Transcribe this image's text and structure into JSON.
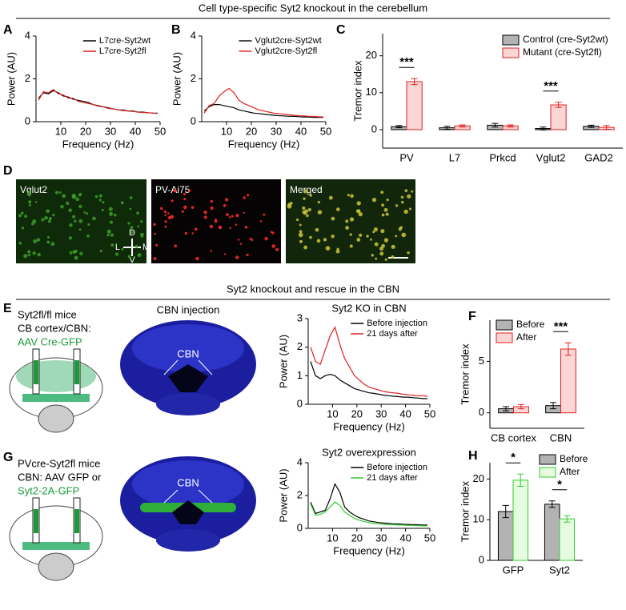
{
  "figure": {
    "section_1_title": "Cell type-specific Syt2 knockout in the cerebellum",
    "section_2_title": "Syt2 knockout and rescue in the CBN",
    "panel_letters": [
      "A",
      "B",
      "C",
      "D",
      "E",
      "F",
      "G",
      "H"
    ],
    "panel_d": {
      "labels": [
        "Vglut2",
        "PV-Ai75",
        "Merged"
      ],
      "compass": [
        "D",
        "L",
        "M",
        "V"
      ]
    },
    "panel_e": {
      "diagram_lines": [
        "Syt2fl/fl mice",
        "CB cortex/CBN:",
        "AAV Cre-GFP"
      ],
      "image_title": "CBN injection",
      "image_label": "CBN"
    },
    "panel_g": {
      "diagram_lines": [
        "PVcre-Syt2fl mice",
        "CBN: AAV GFP or",
        "Syt2-2A-GFP"
      ],
      "image_label": "CBN"
    }
  },
  "chart_data": [
    {
      "type": "line",
      "xlabel": "Frequency (Hz)",
      "ylabel": "Power (AU)",
      "x": [
        1,
        3,
        5,
        7,
        9,
        11,
        13,
        15,
        17,
        19,
        21,
        23,
        25,
        27,
        29,
        31,
        33,
        35,
        37,
        39,
        41,
        43,
        45,
        47,
        49
      ],
      "xlim": [
        0,
        50
      ],
      "xticks": [
        10,
        20,
        30,
        40,
        50
      ],
      "ylim": [
        0,
        4
      ],
      "yticks": [
        0,
        2,
        4
      ],
      "series": [
        {
          "name": "L7cre-Syt2wt",
          "color": "#000000",
          "values": [
            1.1,
            1.35,
            1.3,
            1.45,
            1.35,
            1.2,
            1.15,
            1.05,
            1.0,
            0.95,
            0.9,
            0.8,
            0.75,
            0.7,
            0.65,
            0.6,
            0.55,
            0.55,
            0.5,
            0.5,
            0.45,
            0.45,
            0.42,
            0.4,
            0.4
          ]
        },
        {
          "name": "L7cre-Syt2fl",
          "color": "#e02020",
          "values": [
            1.0,
            1.4,
            1.35,
            1.5,
            1.3,
            1.25,
            1.1,
            1.1,
            0.95,
            0.9,
            0.85,
            0.8,
            0.72,
            0.7,
            0.62,
            0.6,
            0.55,
            0.52,
            0.5,
            0.48,
            0.45,
            0.43,
            0.42,
            0.4,
            0.38
          ]
        }
      ]
    },
    {
      "type": "line",
      "xlabel": "Frequency (Hz)",
      "ylabel": "Power (AU)",
      "x": [
        1,
        3,
        5,
        7,
        9,
        11,
        13,
        15,
        17,
        19,
        21,
        23,
        25,
        27,
        29,
        31,
        33,
        35,
        37,
        39,
        41,
        43,
        45,
        47,
        49
      ],
      "xlim": [
        0,
        50
      ],
      "xticks": [
        10,
        20,
        30,
        40,
        50
      ],
      "ylim": [
        0,
        4
      ],
      "yticks": [
        0,
        2,
        4
      ],
      "series": [
        {
          "name": "Vglut2cre-Syt2wt",
          "color": "#000000",
          "values": [
            0.5,
            0.7,
            0.8,
            0.8,
            0.75,
            0.7,
            0.65,
            0.55,
            0.5,
            0.45,
            0.4,
            0.38,
            0.35,
            0.32,
            0.3,
            0.28,
            0.27,
            0.25,
            0.25,
            0.23,
            0.22,
            0.22,
            0.2,
            0.2,
            0.2
          ]
        },
        {
          "name": "Vglut2cre-Syt2fl",
          "color": "#e02020",
          "values": [
            0.4,
            0.75,
            0.85,
            1.2,
            1.4,
            1.55,
            1.35,
            1.0,
            0.85,
            0.75,
            0.65,
            0.55,
            0.5,
            0.45,
            0.4,
            0.38,
            0.35,
            0.32,
            0.3,
            0.28,
            0.27,
            0.25,
            0.25,
            0.23,
            0.22
          ]
        }
      ]
    },
    {
      "type": "bar",
      "ylabel": "Tremor index",
      "categories": [
        "PV",
        "L7",
        "Prkcd",
        "Vglut2",
        "GAD2"
      ],
      "ylim": [
        -5,
        26
      ],
      "yticks": [
        0,
        10,
        20
      ],
      "legend": "upper right",
      "series": [
        {
          "name": "Control (cre-Syt2wt)",
          "color": "#b3b3b3",
          "edgecolor": "#000000",
          "values": [
            0.8,
            0.5,
            1.2,
            0.3,
            0.9
          ],
          "errors": [
            0.3,
            0.4,
            0.5,
            0.4,
            0.3
          ]
        },
        {
          "name": "Mutant (cre-Syt2fl)",
          "color": "#fcd5d5",
          "edgecolor": "#e02020",
          "values": [
            13,
            1,
            1,
            6.7,
            0.6
          ],
          "errors": [
            0.8,
            0.3,
            0.3,
            0.7,
            0.5
          ]
        }
      ],
      "annotations": [
        {
          "text": "***",
          "category": "PV"
        },
        {
          "text": "***",
          "category": "Vglut2"
        }
      ]
    },
    {
      "type": "line",
      "title": "Syt2 KO in CBN",
      "xlabel": "Frequency (Hz)",
      "ylabel": "Power (AU)",
      "x": [
        1,
        3,
        5,
        7,
        9,
        11,
        13,
        15,
        17,
        19,
        21,
        23,
        25,
        27,
        29,
        31,
        33,
        35,
        37,
        39,
        41,
        43,
        45,
        47,
        49
      ],
      "xlim": [
        0,
        50
      ],
      "xticks": [
        10,
        20,
        30,
        40,
        50
      ],
      "ylim": [
        0,
        3
      ],
      "yticks": [
        0,
        1,
        2,
        3
      ],
      "series": [
        {
          "name": "Before injection",
          "color": "#000000",
          "values": [
            1.5,
            1.0,
            0.9,
            1.0,
            1.05,
            1.0,
            0.85,
            0.75,
            0.65,
            0.55,
            0.5,
            0.45,
            0.4,
            0.38,
            0.35,
            0.32,
            0.3,
            0.28,
            0.27,
            0.25,
            0.25,
            0.23,
            0.22,
            0.2,
            0.2
          ]
        },
        {
          "name": "21 days after",
          "color": "#e02020",
          "values": [
            2.0,
            1.5,
            1.4,
            1.9,
            2.4,
            2.7,
            2.1,
            1.6,
            1.3,
            1.0,
            0.85,
            0.7,
            0.6,
            0.55,
            0.5,
            0.45,
            0.42,
            0.4,
            0.38,
            0.35,
            0.33,
            0.32,
            0.3,
            0.3,
            0.28
          ]
        }
      ]
    },
    {
      "type": "bar",
      "ylabel": "Tremor index",
      "categories": [
        "CB cortex",
        "CBN"
      ],
      "ylim": [
        -1.5,
        9
      ],
      "yticks": [
        0,
        5
      ],
      "legend": "upper left",
      "series": [
        {
          "name": "Before",
          "color": "#b3b3b3",
          "edgecolor": "#000000",
          "values": [
            0.4,
            0.7
          ],
          "errors": [
            0.2,
            0.3
          ]
        },
        {
          "name": "After",
          "color": "#fcd5d5",
          "edgecolor": "#e02020",
          "values": [
            0.6,
            6.2
          ],
          "errors": [
            0.2,
            0.6
          ]
        }
      ],
      "annotations": [
        {
          "text": "***",
          "category": "CBN"
        }
      ]
    },
    {
      "type": "line",
      "title": "Syt2 overexpression",
      "xlabel": "Frequency (Hz)",
      "ylabel": "Power (AU)",
      "x": [
        1,
        3,
        5,
        7,
        9,
        11,
        13,
        15,
        17,
        19,
        21,
        23,
        25,
        27,
        29,
        31,
        33,
        35,
        37,
        39,
        41,
        43,
        45,
        47,
        49
      ],
      "xlim": [
        0,
        50
      ],
      "xticks": [
        10,
        20,
        30,
        40,
        50
      ],
      "ylim": [
        0,
        4
      ],
      "yticks": [
        0,
        2,
        4
      ],
      "series": [
        {
          "name": "Before injection",
          "color": "#000000",
          "values": [
            1.6,
            0.9,
            1.0,
            1.1,
            1.8,
            2.7,
            2.2,
            1.3,
            1.0,
            0.8,
            0.65,
            0.55,
            0.45,
            0.4,
            0.35,
            0.32,
            0.3,
            0.28,
            0.27,
            0.25,
            0.24,
            0.23,
            0.22,
            0.2,
            0.2
          ]
        },
        {
          "name": "21 days after",
          "color": "#33cc33",
          "values": [
            1.5,
            0.8,
            0.85,
            1.0,
            1.3,
            1.6,
            1.4,
            1.0,
            0.8,
            0.6,
            0.5,
            0.42,
            0.35,
            0.3,
            0.28,
            0.25,
            0.23,
            0.22,
            0.2,
            0.2,
            0.18,
            0.17,
            0.16,
            0.15,
            0.15
          ]
        }
      ]
    },
    {
      "type": "bar",
      "ylabel": "Tremor index",
      "categories": [
        "GFP",
        "Syt2"
      ],
      "ylim": [
        0,
        24
      ],
      "yticks": [
        0,
        10,
        20
      ],
      "legend": "upper right",
      "series": [
        {
          "name": "Before",
          "color": "#b3b3b3",
          "edgecolor": "#000000",
          "values": [
            12,
            13.8
          ],
          "errors": [
            1.5,
            0.8
          ]
        },
        {
          "name": "After",
          "color": "#e6fbe0",
          "edgecolor": "#33cc33",
          "values": [
            19.7,
            10.2
          ],
          "errors": [
            1.5,
            0.8
          ]
        }
      ],
      "annotations": [
        {
          "text": "*",
          "category": "GFP"
        },
        {
          "text": "*",
          "category": "Syt2"
        }
      ]
    }
  ]
}
